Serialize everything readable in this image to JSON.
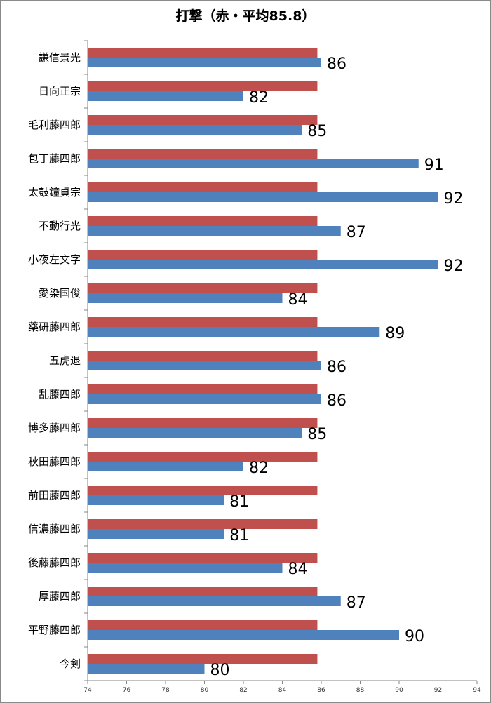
{
  "chart_data": {
    "type": "bar",
    "orientation": "horizontal",
    "title": "打撃（赤・平均85.8）",
    "categories": [
      "謙信景光",
      "日向正宗",
      "毛利藤四郎",
      "包丁藤四郎",
      "太鼓鐘貞宗",
      "不動行光",
      "小夜左文字",
      "愛染国俊",
      "薬研藤四郎",
      "五虎退",
      "乱藤四郎",
      "博多藤四郎",
      "秋田藤四郎",
      "前田藤四郎",
      "信濃藤四郎",
      "後藤藤四郎",
      "厚藤四郎",
      "平野藤四郎",
      "今剣"
    ],
    "series": [
      {
        "color": "#c0504d",
        "values": [
          85.8,
          85.8,
          85.8,
          85.8,
          85.8,
          85.8,
          85.8,
          85.8,
          85.8,
          85.8,
          85.8,
          85.8,
          85.8,
          85.8,
          85.8,
          85.8,
          85.8,
          85.8,
          85.8
        ]
      },
      {
        "color": "#4f81bd",
        "values": [
          86,
          82,
          85,
          91,
          92,
          87,
          92,
          84,
          89,
          86,
          86,
          85,
          82,
          81,
          81,
          84,
          87,
          90,
          80
        ]
      }
    ],
    "data_labels": [
      "86",
      "82",
      "85",
      "91",
      "92",
      "87",
      "92",
      "84",
      "89",
      "86",
      "86",
      "85",
      "82",
      "81",
      "81",
      "84",
      "87",
      "90",
      "80"
    ],
    "xlim": [
      74,
      94
    ],
    "xticks": [
      "74",
      "76",
      "78",
      "80",
      "82",
      "84",
      "86",
      "88",
      "90",
      "92",
      "94"
    ],
    "grid": false,
    "legend": "none"
  }
}
